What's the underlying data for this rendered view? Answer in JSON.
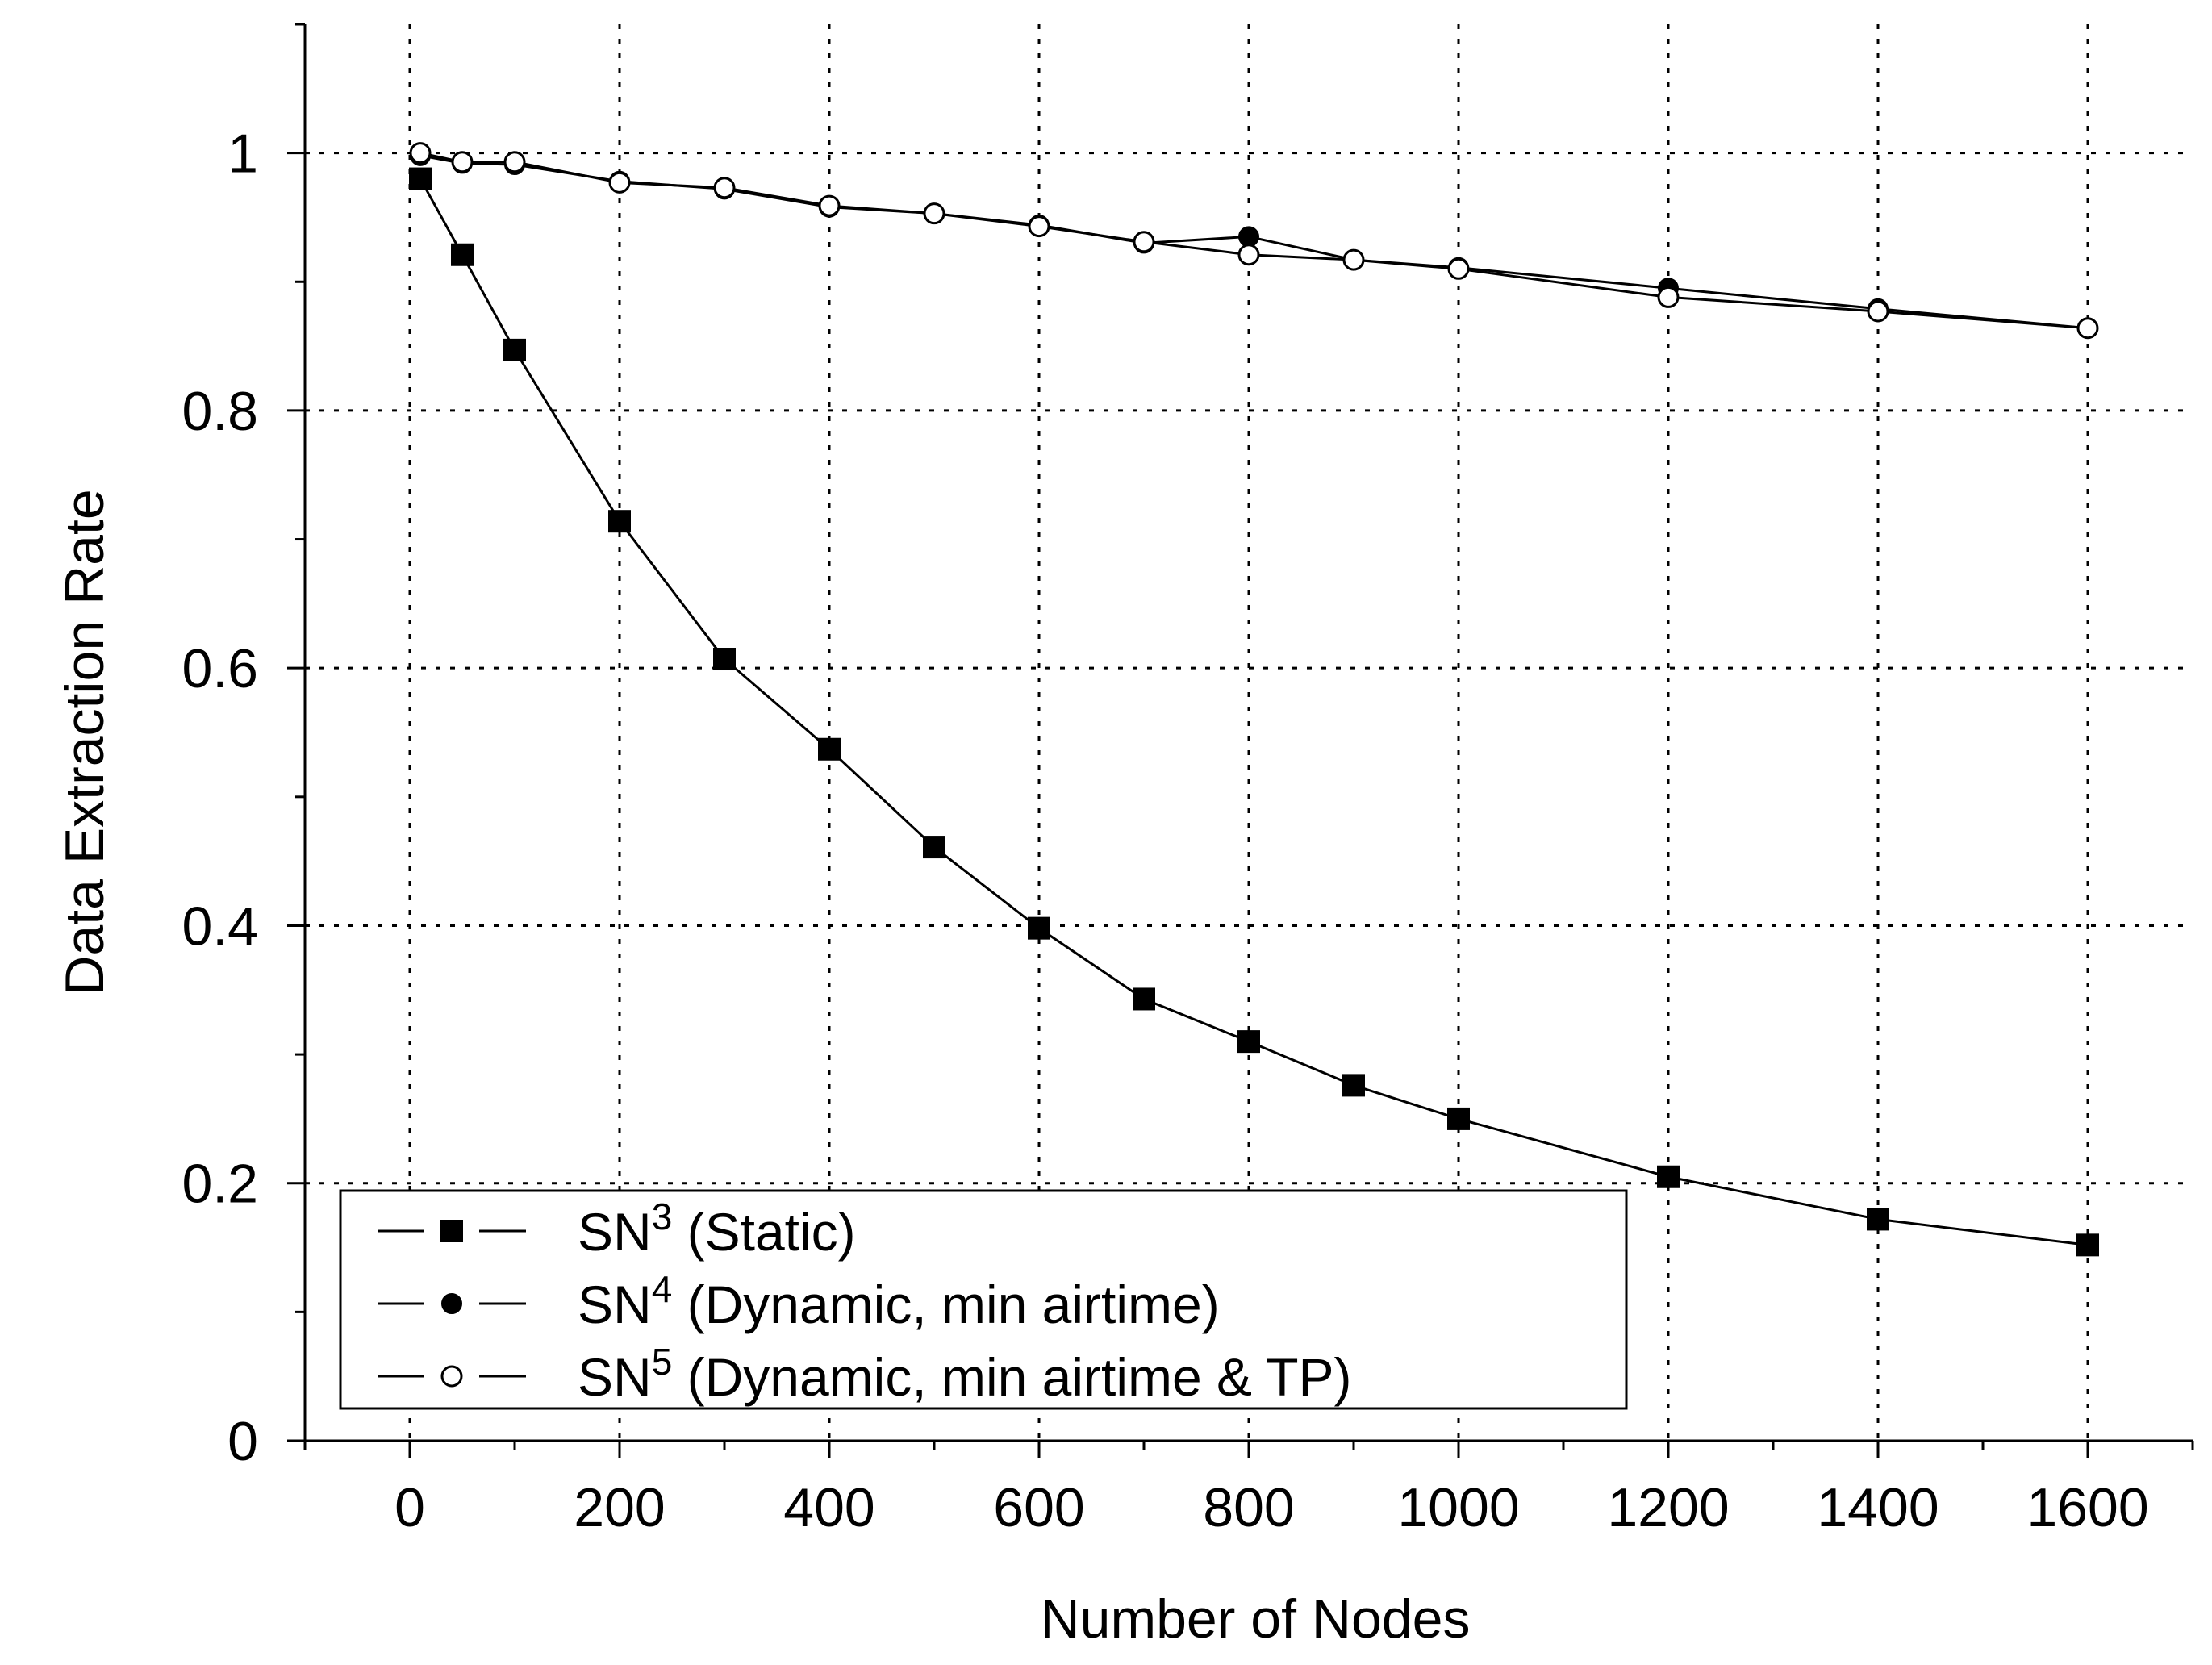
{
  "chart_data": {
    "type": "line",
    "title": "",
    "xlabel": "Number of Nodes",
    "ylabel": "Data Extraction Rate",
    "xlim": [
      -100,
      1700
    ],
    "ylim": [
      0,
      1.1
    ],
    "xticks": [
      0,
      200,
      400,
      600,
      800,
      1000,
      1200,
      1400,
      1600
    ],
    "xtick_labels": [
      "0",
      "200",
      "400",
      "600",
      "800",
      "1000",
      "1200",
      "1400",
      "1600"
    ],
    "yticks": [
      0,
      0.2,
      0.4,
      0.6,
      0.8,
      1
    ],
    "ytick_labels": [
      "0",
      "0.2",
      "0.4",
      "0.6",
      "0.8",
      "1"
    ],
    "grid": true,
    "legend_position": "bottom-left",
    "series": [
      {
        "name_base": "SN",
        "name_sup": "3",
        "name_rest": " (Static)",
        "marker": "filled-square",
        "x": [
          10,
          50,
          100,
          200,
          300,
          400,
          500,
          600,
          700,
          800,
          900,
          1000,
          1200,
          1400,
          1600
        ],
        "y": [
          0.98,
          0.921,
          0.847,
          0.714,
          0.607,
          0.537,
          0.461,
          0.398,
          0.343,
          0.31,
          0.276,
          0.25,
          0.205,
          0.172,
          0.152
        ]
      },
      {
        "name_base": "SN",
        "name_sup": "4",
        "name_rest": " (Dynamic, min airtime)",
        "marker": "filled-circle",
        "x": [
          10,
          50,
          100,
          200,
          300,
          400,
          500,
          600,
          700,
          800,
          900,
          1000,
          1200,
          1400,
          1600
        ],
        "y": [
          0.998,
          0.992,
          0.991,
          0.978,
          0.972,
          0.958,
          0.953,
          0.944,
          0.93,
          0.935,
          0.917,
          0.911,
          0.895,
          0.879,
          0.864
        ]
      },
      {
        "name_base": "SN",
        "name_sup": "5",
        "name_rest": " (Dynamic, min airtime & TP)",
        "marker": "open-circle",
        "x": [
          10,
          50,
          100,
          200,
          300,
          400,
          500,
          600,
          700,
          800,
          900,
          1000,
          1200,
          1400,
          1600
        ],
        "y": [
          1.0,
          0.993,
          0.993,
          0.977,
          0.973,
          0.959,
          0.953,
          0.943,
          0.931,
          0.921,
          0.917,
          0.91,
          0.888,
          0.877,
          0.864
        ]
      }
    ]
  }
}
